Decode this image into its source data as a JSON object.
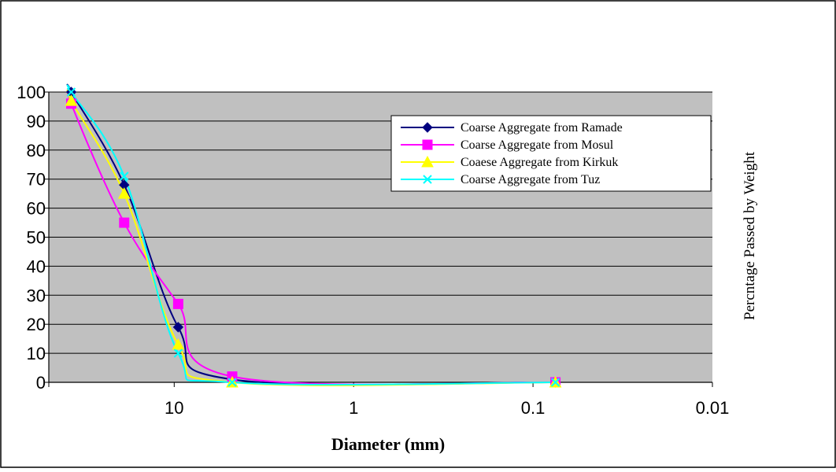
{
  "chart_data": {
    "type": "line",
    "xlabel": "Diameter (mm)",
    "ylabel": "Percntage  Passed by Weight",
    "x_scale": "log",
    "x_reversed": true,
    "xlim": [
      50,
      0.01
    ],
    "ylim": [
      0,
      100
    ],
    "yticks": [
      "0",
      "10",
      "20",
      "30",
      "40",
      "50",
      "60",
      "70",
      "80",
      "90",
      "100"
    ],
    "xticks": [
      {
        "value": 10,
        "label": "10"
      },
      {
        "value": 1,
        "label": "1"
      },
      {
        "value": 0.1,
        "label": "0.1"
      },
      {
        "value": 0.01,
        "label": "0.01"
      }
    ],
    "grid": true,
    "legend_position": "top-right",
    "series": [
      {
        "name": "Coarse Aggregate from Ramade",
        "color": "#000080",
        "marker": "diamond",
        "x": [
          37.5,
          19,
          9.5,
          4.75,
          0.075
        ],
        "y": [
          100,
          68,
          19,
          1,
          0
        ]
      },
      {
        "name": "Coarse Aggregate from Mosul",
        "color": "#ff00ff",
        "marker": "square",
        "x": [
          37.5,
          19,
          9.5,
          4.75,
          0.075
        ],
        "y": [
          96,
          55,
          27,
          2,
          0
        ]
      },
      {
        "name": "Coaese Aggregate from Kirkuk",
        "color": "#ffff00",
        "marker": "triangle",
        "x": [
          37.5,
          19,
          9.5,
          4.75,
          0.075
        ],
        "y": [
          97,
          65,
          13,
          0,
          0
        ]
      },
      {
        "name": "Coarse Aggregate from Tuz",
        "color": "#00ffff",
        "marker": "x",
        "x": [
          37.5,
          19,
          9.5,
          4.75,
          0.075
        ],
        "y": [
          100,
          71,
          10,
          0,
          0
        ]
      }
    ]
  }
}
